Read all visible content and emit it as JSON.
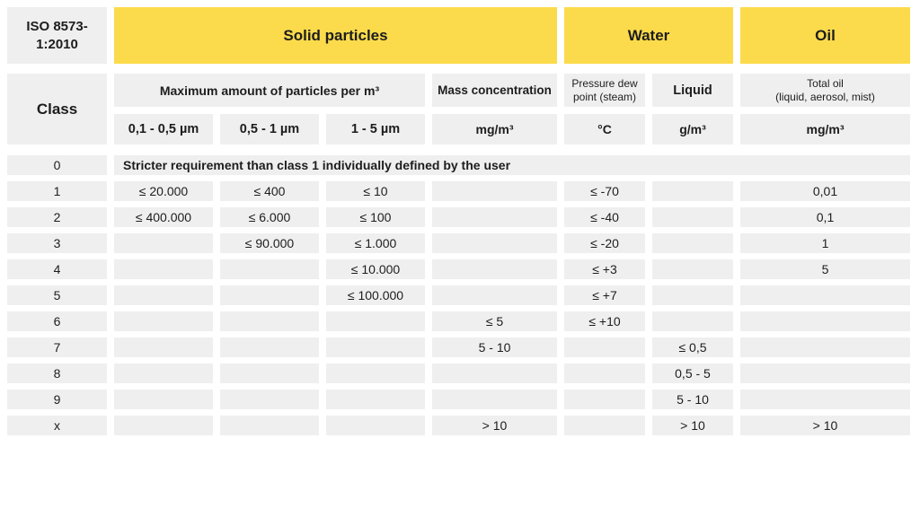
{
  "colors": {
    "header_yellow": "#fbdb4b",
    "cell_gray": "#efefef",
    "text": "#1d1d1d",
    "background": "#ffffff"
  },
  "header": {
    "corner": {
      "line1": "ISO 8573-",
      "line2": "1:2010"
    },
    "groups": {
      "solid_particles": "Solid particles",
      "water": "Water",
      "oil": "Oil"
    }
  },
  "subheader": {
    "class_label": "Class",
    "particles_span": "Maximum amount of particles per m³",
    "particle_ranges": [
      "0,1 - 0,5 µm",
      "0,5 - 1 µm",
      "1 - 5 µm"
    ],
    "mass_concentration": "Mass concentration",
    "dew_point": {
      "line1": "Pressure dew",
      "line2": "point (steam)"
    },
    "liquid": "Liquid",
    "total_oil": {
      "line1": "Total oil",
      "line2": "(liquid, aerosol, mist)"
    },
    "units": {
      "mass": "mg/m³",
      "dew": "°C",
      "liquid": "g/m³",
      "oil": "mg/m³"
    }
  },
  "rows": [
    {
      "class": "0",
      "note": "Stricter requirement than class 1 individually defined by the user"
    },
    {
      "class": "1",
      "cells": [
        "≤ 20.000",
        "≤ 400",
        "≤ 10",
        "",
        "≤ -70",
        "",
        "0,01"
      ]
    },
    {
      "class": "2",
      "cells": [
        "≤ 400.000",
        "≤ 6.000",
        "≤ 100",
        "",
        "≤ -40",
        "",
        "0,1"
      ]
    },
    {
      "class": "3",
      "cells": [
        "",
        "≤ 90.000",
        "≤ 1.000",
        "",
        "≤ -20",
        "",
        "1"
      ]
    },
    {
      "class": "4",
      "cells": [
        "",
        "",
        "≤ 10.000",
        "",
        "≤ +3",
        "",
        "5"
      ]
    },
    {
      "class": "5",
      "cells": [
        "",
        "",
        "≤ 100.000",
        "",
        "≤ +7",
        "",
        ""
      ]
    },
    {
      "class": "6",
      "cells": [
        "",
        "",
        "",
        "≤ 5",
        "≤ +10",
        "",
        ""
      ]
    },
    {
      "class": "7",
      "cells": [
        "",
        "",
        "",
        "5 - 10",
        "",
        "≤ 0,5",
        ""
      ]
    },
    {
      "class": "8",
      "cells": [
        "",
        "",
        "",
        "",
        "",
        "0,5 - 5",
        ""
      ]
    },
    {
      "class": "9",
      "cells": [
        "",
        "",
        "",
        "",
        "",
        "5 - 10",
        ""
      ]
    },
    {
      "class": "x",
      "cells": [
        "",
        "",
        "",
        "> 10",
        "",
        "> 10",
        "> 10"
      ]
    }
  ],
  "chart_data": {
    "type": "table",
    "title": "ISO 8573-1:2010",
    "column_groups": [
      {
        "label": "Solid particles",
        "columns": [
          1,
          2,
          3,
          4
        ]
      },
      {
        "label": "Water",
        "columns": [
          5,
          6
        ]
      },
      {
        "label": "Oil",
        "columns": [
          7
        ]
      }
    ],
    "columns": [
      "Class",
      "Maximum amount of particles per m³: 0,1 - 0,5 µm",
      "Maximum amount of particles per m³: 0,5 - 1 µm",
      "Maximum amount of particles per m³: 1 - 5 µm",
      "Mass concentration (mg/m³)",
      "Pressure dew point (steam) (°C)",
      "Liquid (g/m³)",
      "Total oil (liquid, aerosol, mist) (mg/m³)"
    ],
    "rows": [
      [
        "0",
        "Stricter requirement than class 1 individually defined by the user",
        "",
        "",
        "",
        "",
        "",
        ""
      ],
      [
        "1",
        "≤ 20.000",
        "≤ 400",
        "≤ 10",
        "",
        "≤ -70",
        "",
        "0,01"
      ],
      [
        "2",
        "≤ 400.000",
        "≤ 6.000",
        "≤ 100",
        "",
        "≤ -40",
        "",
        "0,1"
      ],
      [
        "3",
        "",
        "≤ 90.000",
        "≤ 1.000",
        "",
        "≤ -20",
        "",
        "1"
      ],
      [
        "4",
        "",
        "",
        "≤ 10.000",
        "",
        "≤ +3",
        "",
        "5"
      ],
      [
        "5",
        "",
        "",
        "≤ 100.000",
        "",
        "≤ +7",
        "",
        ""
      ],
      [
        "6",
        "",
        "",
        "",
        "≤ 5",
        "≤ +10",
        "",
        ""
      ],
      [
        "7",
        "",
        "",
        "",
        "5 - 10",
        "",
        "≤ 0,5",
        ""
      ],
      [
        "8",
        "",
        "",
        "",
        "",
        "",
        "0,5 - 5",
        ""
      ],
      [
        "9",
        "",
        "",
        "",
        "",
        "",
        "5 - 10",
        ""
      ],
      [
        "x",
        "",
        "",
        "",
        "> 10",
        "",
        "> 10",
        "> 10"
      ]
    ],
    "layout": {
      "grid": "off",
      "cell_gap_color": "#ffffff"
    }
  }
}
